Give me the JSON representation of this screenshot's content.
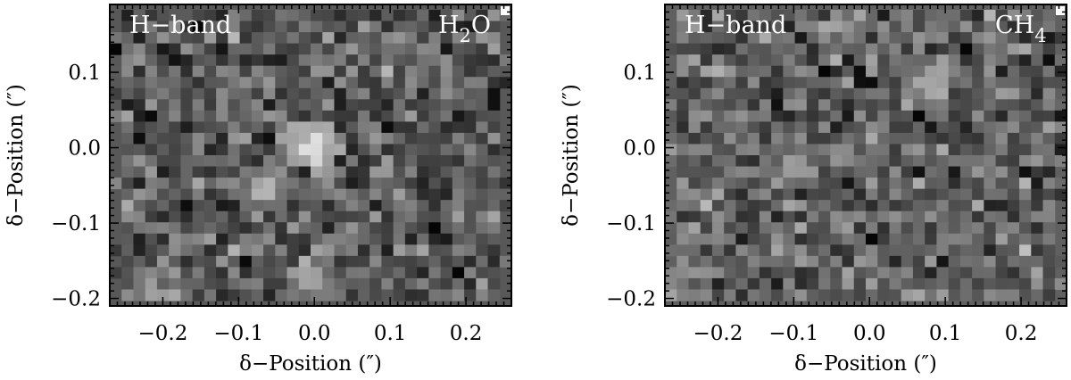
{
  "chart_data": [
    {
      "type": "heatmap",
      "colormap": "grayscale",
      "label_left": "H−band",
      "label_right_main": "H",
      "label_right_sub": "2",
      "label_right_tail": "O",
      "xlabel": "δ−Position (″)",
      "ylabel": "δ−Position (″)",
      "xlim": [
        -0.27,
        0.26
      ],
      "ylim": [
        -0.21,
        0.19
      ],
      "xticks": [
        -0.2,
        -0.1,
        0.0,
        0.1,
        0.2
      ],
      "xtick_labels": [
        "−0.2",
        "−0.1",
        "0.0",
        "0.1",
        "0.2"
      ],
      "yticks": [
        -0.2,
        -0.1,
        0.0,
        0.1
      ],
      "ytick_labels": [
        "−0.2",
        "−0.1",
        "0.0",
        "0.1"
      ],
      "grid_cols": 34,
      "grid_rows": 26,
      "seed": 11,
      "background_gray": 88,
      "hotspots": [
        [
          0.0,
          0.0,
          230
        ],
        [
          -0.07,
          -0.06,
          180
        ],
        [
          0.0,
          -0.18,
          175
        ],
        [
          -0.2,
          -0.205,
          170
        ]
      ]
    },
    {
      "type": "heatmap",
      "colormap": "grayscale",
      "label_left": "H−band",
      "label_right_main": "CH",
      "label_right_sub": "4",
      "label_right_tail": "",
      "xlabel": "δ−Position (″)",
      "ylabel": "δ−Position (″)",
      "xlim": [
        -0.27,
        0.26
      ],
      "ylim": [
        -0.21,
        0.19
      ],
      "xticks": [
        -0.2,
        -0.1,
        0.0,
        0.1,
        0.2
      ],
      "xtick_labels": [
        "−0.2",
        "−0.1",
        "0.0",
        "0.1",
        "0.2"
      ],
      "yticks": [
        -0.2,
        -0.1,
        0.0,
        0.1
      ],
      "ytick_labels": [
        "−0.2",
        "−0.1",
        "0.0",
        "0.1"
      ],
      "grid_cols": 34,
      "grid_rows": 26,
      "seed": 29,
      "background_gray": 96,
      "hotspots": [
        [
          -0.1,
          -0.02,
          165
        ],
        [
          0.08,
          0.09,
          175
        ],
        [
          -0.03,
          -0.01,
          150
        ]
      ]
    }
  ]
}
